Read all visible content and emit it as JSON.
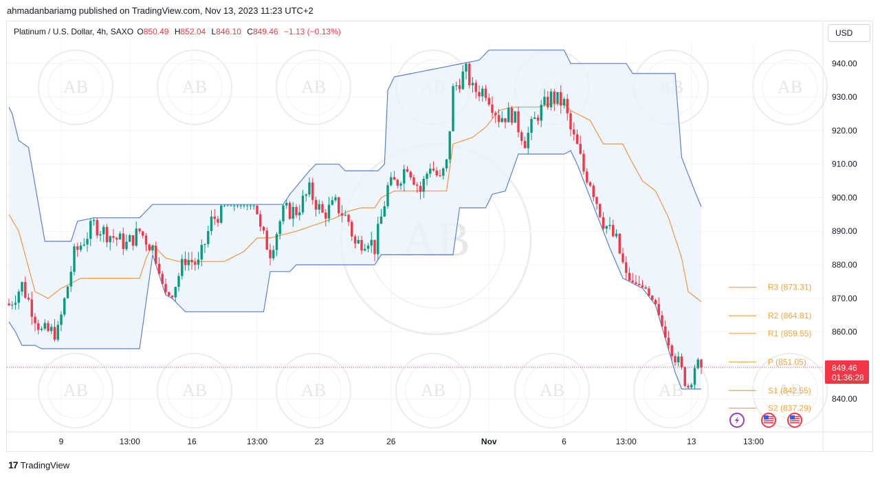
{
  "publisher": "ahmadanbariamg published on TradingView.com, Nov 13, 2023 11:23 UTC+2",
  "symbol": "Platinum / U.S. Dollar, 4h, SAXO",
  "ohlc": {
    "o_label": "O",
    "o": "850.49",
    "h_label": "H",
    "h": "852.04",
    "l_label": "L",
    "l": "846.10",
    "c_label": "C",
    "c": "849.46",
    "change": "−1.13 (−0.13%)"
  },
  "currency_button": "USD",
  "footer_brand": "TradingView",
  "watermark_text": "AB",
  "chart_data": {
    "type": "candlestick",
    "ylim": [
      830,
      946
    ],
    "y_ticks": [
      840,
      850,
      860,
      870,
      880,
      890,
      900,
      910,
      920,
      930,
      940
    ],
    "y_tick_labels": [
      "840.00",
      "850.00",
      "860.00",
      "870.00",
      "880.00",
      "890.00",
      "900.00",
      "910.00",
      "920.00",
      "930.00",
      "940.00"
    ],
    "x_tick_labels": [
      {
        "label": "9",
        "index": 16
      },
      {
        "label": "13:00",
        "index": 37
      },
      {
        "label": "16",
        "index": 56
      },
      {
        "label": "13:00",
        "index": 76
      },
      {
        "label": "23",
        "index": 95
      },
      {
        "label": "26",
        "index": 117
      },
      {
        "label": "Nov",
        "index": 147,
        "bold": true
      },
      {
        "label": "6",
        "index": 170
      },
      {
        "label": "13:00",
        "index": 189
      },
      {
        "label": "13",
        "index": 209
      },
      {
        "label": "13:00",
        "index": 228
      }
    ],
    "last_price": "849.46",
    "countdown": "01:36:28",
    "colors": {
      "up": "#089981",
      "down": "#f23645",
      "channel": "#5b7fcf",
      "basis": "#f0953f",
      "fill": "#eaf3fb",
      "pivot": "#f0a43a"
    },
    "series_anchors": {
      "close": [
        [
          0,
          868
        ],
        [
          4,
          874
        ],
        [
          10,
          860
        ],
        [
          15,
          860
        ],
        [
          20,
          883
        ],
        [
          26,
          892
        ],
        [
          29,
          890
        ],
        [
          36,
          886
        ],
        [
          40,
          890
        ],
        [
          44,
          885
        ],
        [
          47,
          870
        ],
        [
          50,
          872
        ],
        [
          54,
          882
        ],
        [
          58,
          880
        ],
        [
          62,
          893
        ],
        [
          66,
          897
        ],
        [
          70,
          908
        ],
        [
          74,
          908
        ],
        [
          77,
          890
        ],
        [
          80,
          884
        ],
        [
          84,
          896
        ],
        [
          88,
          896
        ],
        [
          92,
          902
        ],
        [
          96,
          895
        ],
        [
          100,
          898
        ],
        [
          104,
          893
        ],
        [
          106,
          886
        ],
        [
          110,
          888
        ],
        [
          112,
          885
        ],
        [
          116,
          903
        ],
        [
          119,
          905
        ],
        [
          122,
          910
        ],
        [
          126,
          902
        ],
        [
          129,
          910
        ],
        [
          132,
          905
        ],
        [
          134,
          910
        ],
        [
          136,
          932
        ],
        [
          140,
          938
        ],
        [
          142,
          932
        ],
        [
          146,
          932
        ],
        [
          150,
          924
        ],
        [
          154,
          925
        ],
        [
          158,
          917
        ],
        [
          162,
          925
        ],
        [
          166,
          930
        ],
        [
          170,
          928
        ],
        [
          172,
          920
        ],
        [
          174,
          915
        ],
        [
          176,
          908
        ],
        [
          178,
          905
        ],
        [
          182,
          893
        ],
        [
          186,
          887
        ],
        [
          188,
          880
        ],
        [
          190,
          872
        ],
        [
          194,
          873
        ],
        [
          198,
          862
        ],
        [
          202,
          858
        ],
        [
          206,
          848
        ],
        [
          208,
          844
        ],
        [
          210,
          850
        ],
        [
          212,
          849.46
        ]
      ],
      "upper": [
        [
          0,
          927
        ],
        [
          1,
          925
        ],
        [
          3,
          917
        ],
        [
          6,
          915
        ],
        [
          11,
          887
        ],
        [
          19,
          887
        ],
        [
          21,
          893
        ],
        [
          26,
          894
        ],
        [
          40,
          894
        ],
        [
          44,
          898
        ],
        [
          84,
          898
        ],
        [
          86,
          901
        ],
        [
          92,
          908
        ],
        [
          94,
          910
        ],
        [
          101,
          910
        ],
        [
          103,
          908
        ],
        [
          113,
          908
        ],
        [
          115,
          910
        ],
        [
          116,
          932
        ],
        [
          118,
          936
        ],
        [
          144,
          941
        ],
        [
          147,
          944
        ],
        [
          170,
          944
        ],
        [
          172,
          940
        ],
        [
          189,
          940
        ],
        [
          191,
          937
        ],
        [
          204,
          937
        ],
        [
          206,
          912
        ],
        [
          210,
          902
        ],
        [
          213,
          895
        ]
      ],
      "lower": [
        [
          0,
          863
        ],
        [
          2,
          860
        ],
        [
          4,
          856
        ],
        [
          8,
          856
        ],
        [
          10,
          855
        ],
        [
          40,
          855
        ],
        [
          44,
          883
        ],
        [
          48,
          871
        ],
        [
          50,
          870
        ],
        [
          54,
          866
        ],
        [
          78,
          866
        ],
        [
          80,
          878
        ],
        [
          86,
          878
        ],
        [
          88,
          880
        ],
        [
          112,
          880
        ],
        [
          114,
          883
        ],
        [
          136,
          883
        ],
        [
          138,
          897
        ],
        [
          146,
          897
        ],
        [
          148,
          901
        ],
        [
          152,
          902
        ],
        [
          156,
          913
        ],
        [
          170,
          913
        ],
        [
          172,
          914
        ],
        [
          174,
          910
        ],
        [
          178,
          900
        ],
        [
          184,
          885
        ],
        [
          188,
          876
        ],
        [
          194,
          873
        ],
        [
          198,
          868
        ],
        [
          204,
          848
        ],
        [
          206,
          843
        ],
        [
          213,
          843
        ]
      ],
      "basis": [
        [
          0,
          895
        ],
        [
          3,
          890
        ],
        [
          8,
          872
        ],
        [
          12,
          870
        ],
        [
          16,
          873
        ],
        [
          22,
          876
        ],
        [
          30,
          876
        ],
        [
          40,
          876
        ],
        [
          42,
          882
        ],
        [
          44,
          886
        ],
        [
          48,
          882
        ],
        [
          52,
          881
        ],
        [
          66,
          881
        ],
        [
          72,
          884
        ],
        [
          76,
          888
        ],
        [
          80,
          888
        ],
        [
          84,
          889
        ],
        [
          88,
          890
        ],
        [
          94,
          892
        ],
        [
          100,
          894
        ],
        [
          104,
          896
        ],
        [
          108,
          897
        ],
        [
          112,
          897
        ],
        [
          114,
          900
        ],
        [
          116,
          901
        ],
        [
          118,
          902
        ],
        [
          134,
          902
        ],
        [
          136,
          916
        ],
        [
          142,
          918
        ],
        [
          146,
          921
        ],
        [
          150,
          926
        ],
        [
          154,
          927
        ],
        [
          162,
          927
        ],
        [
          166,
          928
        ],
        [
          170,
          928
        ],
        [
          172,
          926
        ],
        [
          178,
          923
        ],
        [
          182,
          916
        ],
        [
          188,
          916
        ],
        [
          190,
          912
        ],
        [
          194,
          905
        ],
        [
          198,
          902
        ],
        [
          202,
          894
        ],
        [
          206,
          882
        ],
        [
          208,
          872
        ],
        [
          212,
          869
        ]
      ]
    },
    "pivots": [
      {
        "label": "R3 (873.31)",
        "value": 873.31
      },
      {
        "label": "R2 (864.81)",
        "value": 864.81
      },
      {
        "label": "R1 (859.55)",
        "value": 859.55
      },
      {
        "label": "P (851.05)",
        "value": 851.05
      },
      {
        "label": "S1 (842.55)",
        "value": 842.55
      },
      {
        "label": "S2 (837.29)",
        "value": 837.29
      }
    ],
    "event_icons": [
      "lightning-icon",
      "us-flag-icon",
      "us-flag-icon"
    ]
  }
}
